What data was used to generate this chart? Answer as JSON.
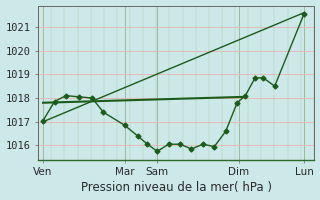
{
  "background_color": "#cce8e8",
  "grid_color_h": "#e8b8b8",
  "grid_color_v": "#99bb99",
  "line_color": "#1a5c1a",
  "marker_style": "D",
  "marker_size": 2.5,
  "xlabel": "Pression niveau de la mer( hPa )",
  "ylim": [
    1015.4,
    1021.9
  ],
  "yticks": [
    1016,
    1017,
    1018,
    1019,
    1020,
    1021
  ],
  "x_tick_labels": [
    "Ven",
    "Mar",
    "Sam",
    "Dim",
    "Lun"
  ],
  "x_tick_positions": [
    0,
    2.5,
    3.5,
    6.0,
    8.0
  ],
  "straight_line_x": [
    0,
    8.0
  ],
  "straight_line_y": [
    1017.0,
    1021.6
  ],
  "flat_line_x": [
    0,
    6.2
  ],
  "flat_line_y": [
    1017.8,
    1018.05
  ],
  "curved_x": [
    0,
    0.35,
    0.7,
    1.1,
    1.5,
    1.85,
    2.5,
    2.9,
    3.2,
    3.5,
    3.85,
    4.2,
    4.55,
    4.9,
    5.25,
    5.6,
    5.95,
    6.2,
    6.5,
    6.75,
    7.1,
    8.0
  ],
  "curved_y": [
    1017.05,
    1017.85,
    1018.1,
    1018.05,
    1018.0,
    1017.4,
    1016.85,
    1016.4,
    1016.05,
    1015.75,
    1016.05,
    1016.05,
    1015.85,
    1016.05,
    1015.95,
    1016.6,
    1017.8,
    1018.1,
    1018.85,
    1018.85,
    1018.5,
    1021.55
  ],
  "x_vlines_pos": [
    0,
    2.5,
    3.5,
    6.0,
    8.0
  ],
  "fontsize": 7.5,
  "xlabel_fontsize": 8.5
}
